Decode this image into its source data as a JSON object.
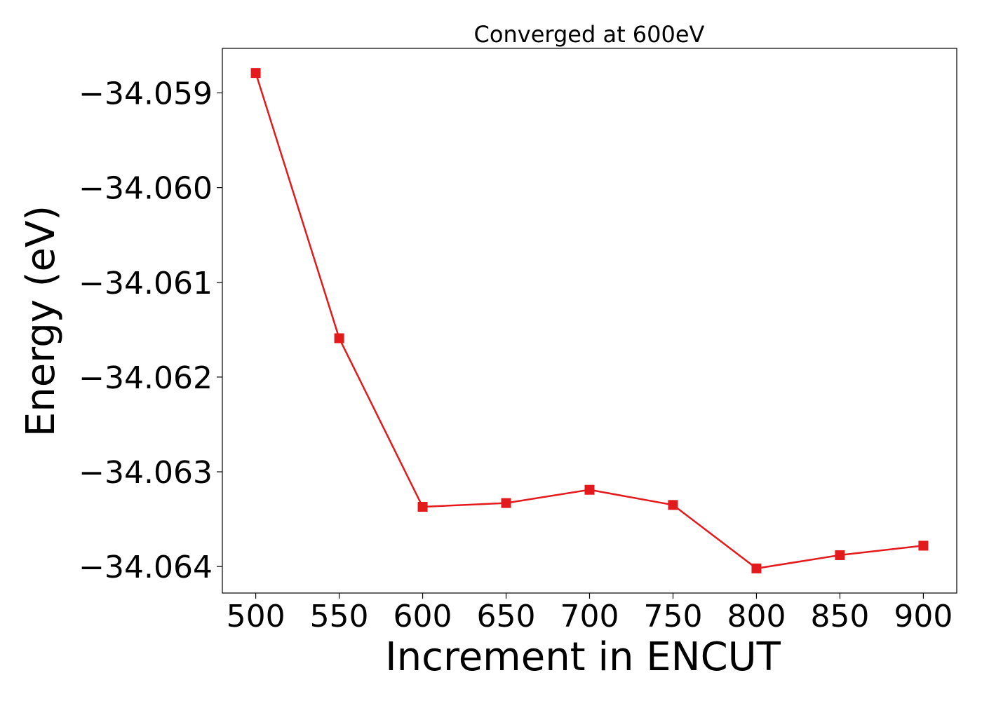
{
  "chart_data": {
    "type": "line",
    "title": "Converged at 600eV",
    "xlabel": "Increment in ENCUT",
    "ylabel": "Energy (eV)",
    "x": [
      500,
      550,
      600,
      650,
      700,
      750,
      800,
      850,
      900
    ],
    "series": [
      {
        "values": [
          -34.05879,
          -34.06159,
          -34.06337,
          -34.06333,
          -34.06319,
          -34.06335,
          -34.06402,
          -34.06388,
          -34.06378
        ],
        "color": "#e31a1c",
        "marker": "square"
      }
    ],
    "xticks": [
      500,
      550,
      600,
      650,
      700,
      750,
      800,
      850,
      900
    ],
    "xtick_labels": [
      "500",
      "550",
      "600",
      "650",
      "700",
      "750",
      "800",
      "850",
      "900"
    ],
    "yticks": [
      -34.059,
      -34.06,
      -34.061,
      -34.062,
      -34.063,
      -34.064
    ],
    "ytick_labels": [
      "−34.059",
      "−34.060",
      "−34.061",
      "−34.062",
      "−34.063",
      "−34.064"
    ],
    "xlim": [
      480,
      920
    ],
    "ylim": [
      -34.06428,
      -34.05853
    ],
    "grid": false,
    "legend": "none"
  }
}
